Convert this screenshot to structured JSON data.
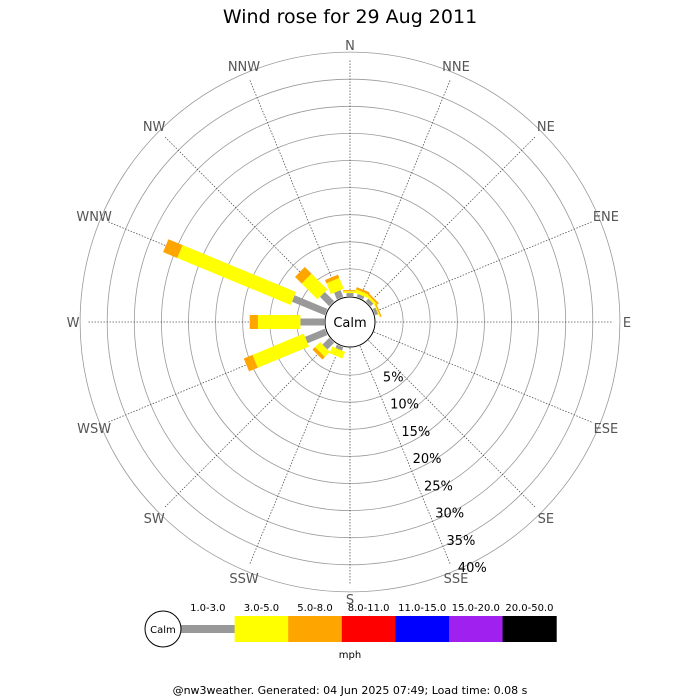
{
  "title": "Wind rose for 29 Aug 2011",
  "footer": "@nw3weather. Generated: 04 Jun 2025 07:49; Load time: 0.08 s",
  "colors": {
    "grid": "#999999",
    "background": "#ffffff",
    "calm_bar": "#999999"
  },
  "chart_data": {
    "type": "wind-rose",
    "title": "Wind rose for 29 Aug 2011",
    "calm_label": "Calm",
    "directions": [
      "N",
      "NNE",
      "NE",
      "ENE",
      "E",
      "ESE",
      "SE",
      "SSE",
      "S",
      "SSW",
      "SW",
      "WSW",
      "W",
      "WNW",
      "NW",
      "NNW"
    ],
    "rings": [
      "5%",
      "10%",
      "15%",
      "20%",
      "25%",
      "30%",
      "35%",
      "40%"
    ],
    "ring_values": [
      5,
      10,
      15,
      20,
      25,
      30,
      35,
      40
    ],
    "r_range": [
      0,
      40
    ],
    "legend": {
      "unit": "mph",
      "calm_label": "Calm",
      "bins": [
        {
          "label": "1.0-3.0",
          "color": "#999999"
        },
        {
          "label": "3.0-5.0",
          "color": "#ffff00"
        },
        {
          "label": "5.0-8.0",
          "color": "#ffa500"
        },
        {
          "label": "8.0-11.0",
          "color": "#ff0000"
        },
        {
          "label": "11.0-15.0",
          "color": "#0000ff"
        },
        {
          "label": "15.0-20.0",
          "color": "#a020f0"
        },
        {
          "label": "20.0-50.0",
          "color": "#000000"
        }
      ]
    },
    "series": [
      {
        "direction": "N",
        "segments": [
          0.5,
          0.3,
          0.2,
          0,
          0,
          0,
          0
        ]
      },
      {
        "direction": "NNE",
        "segments": [
          0.5,
          0.6,
          0.4,
          0,
          0,
          0,
          0
        ]
      },
      {
        "direction": "NE",
        "segments": [
          0.6,
          0.4,
          0.3,
          0,
          0,
          0,
          0
        ]
      },
      {
        "direction": "ENE",
        "segments": [
          0.5,
          0.2,
          0.2,
          0,
          0,
          0,
          0
        ]
      },
      {
        "direction": "E",
        "segments": [
          0,
          0,
          0,
          0,
          0,
          0,
          0
        ]
      },
      {
        "direction": "ESE",
        "segments": [
          0,
          0,
          0,
          0,
          0,
          0,
          0
        ]
      },
      {
        "direction": "SE",
        "segments": [
          0,
          0,
          0,
          0,
          0,
          0,
          0
        ]
      },
      {
        "direction": "SSE",
        "segments": [
          0,
          0,
          0,
          0,
          0,
          0,
          0
        ]
      },
      {
        "direction": "S",
        "segments": [
          0,
          0,
          0,
          0,
          0,
          0,
          0
        ]
      },
      {
        "direction": "SSW",
        "segments": [
          0.6,
          1.2,
          0,
          0,
          0,
          0,
          0
        ]
      },
      {
        "direction": "SW",
        "segments": [
          1.6,
          1.2,
          0.6,
          0,
          0,
          0,
          0
        ]
      },
      {
        "direction": "WSW",
        "segments": [
          3.6,
          9.4,
          1.6,
          0,
          0,
          0,
          0
        ]
      },
      {
        "direction": "W",
        "segments": [
          4.0,
          7.2,
          1.4,
          0,
          0,
          0,
          0
        ]
      },
      {
        "direction": "WNW",
        "segments": [
          6.0,
          20.8,
          2.6,
          0,
          0,
          0,
          0
        ]
      },
      {
        "direction": "NW",
        "segments": [
          2.2,
          3.8,
          1.6,
          0,
          0,
          0,
          0
        ]
      },
      {
        "direction": "NNW",
        "segments": [
          1.2,
          2.0,
          0.6,
          0,
          0,
          0,
          0
        ]
      }
    ]
  }
}
